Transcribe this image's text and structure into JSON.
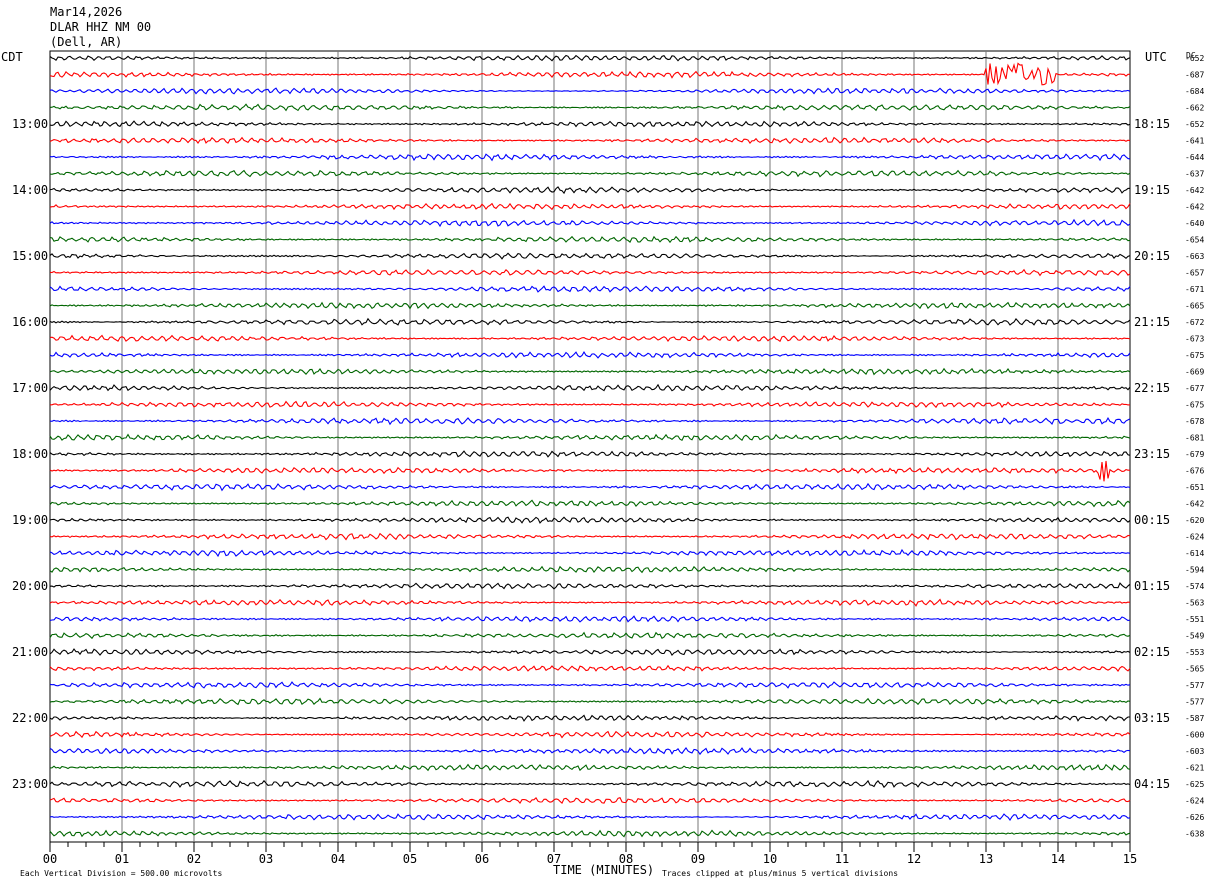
{
  "header": {
    "date": "Mar14,2026",
    "station": "DLAR HHZ NM 00",
    "location": "(Dell, AR)"
  },
  "labels": {
    "left_zone": "CDT",
    "right_zone": "UTC",
    "dc_label": "DC",
    "xlabel": "TIME (MINUTES)",
    "scale_note": "Each Vertical Division =  500.00 microvolts",
    "clip_note": "Traces clipped at plus/minus 5 vertical divisions"
  },
  "colors": {
    "trace_cycle": [
      "#000000",
      "#ff0000",
      "#0000ff",
      "#006600"
    ],
    "grid": "#777777"
  },
  "chart_data": {
    "type": "line",
    "title": "DLAR HHZ NM 00",
    "xlabel": "TIME (MINUTES)",
    "xlim": [
      0,
      15
    ],
    "x_ticks": [
      "00",
      "01",
      "02",
      "03",
      "04",
      "05",
      "06",
      "07",
      "08",
      "09",
      "10",
      "11",
      "12",
      "13",
      "14",
      "15"
    ],
    "trace_count": 48,
    "left_hour_labels": [
      "13:00",
      "14:00",
      "15:00",
      "16:00",
      "17:00",
      "18:00",
      "19:00",
      "20:00",
      "21:00",
      "22:00",
      "23:00"
    ],
    "right_hour_labels": [
      "18:15",
      "19:15",
      "20:15",
      "21:15",
      "22:15",
      "23:15",
      "00:15",
      "01:15",
      "02:15",
      "03:15",
      "04:15"
    ],
    "dc_offsets": [
      -652,
      -687,
      -684,
      -662,
      -652,
      -641,
      -644,
      -637,
      -642,
      -642,
      -640,
      -654,
      -663,
      -657,
      -671,
      -665,
      -672,
      -673,
      -675,
      -669,
      -677,
      -675,
      -678,
      -681,
      -679,
      -676,
      -651,
      -642,
      -620,
      -624,
      -614,
      -594,
      -574,
      -563,
      -551,
      -549,
      -553,
      -565,
      -577,
      -577,
      -587,
      -600,
      -603,
      -621,
      -625,
      -624,
      -626,
      -638
    ],
    "events": [
      {
        "trace": 1,
        "minute_start": 13.0,
        "minute_end": 13.95
      },
      {
        "trace": 25,
        "minute_start": 14.55,
        "minute_end": 14.7
      }
    ]
  }
}
